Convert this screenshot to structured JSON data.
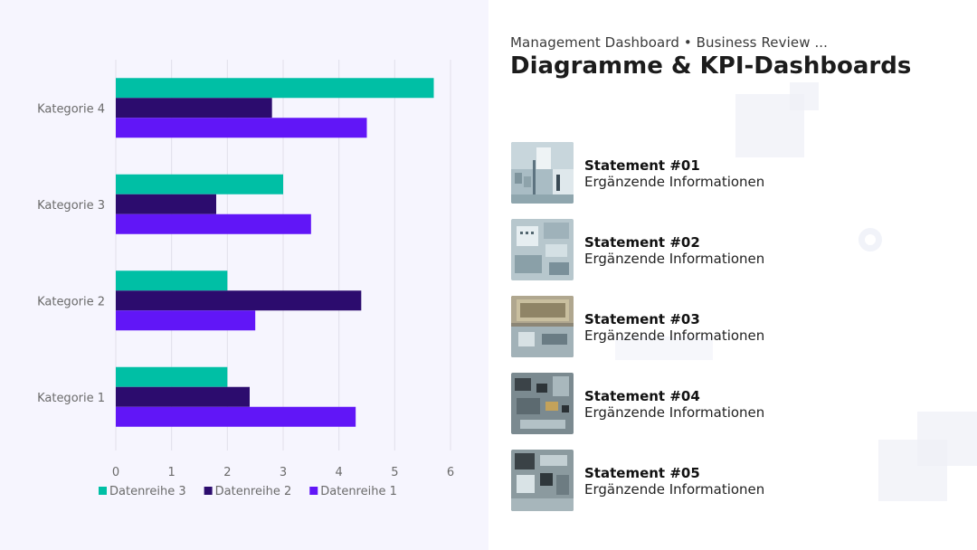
{
  "header": {
    "subtitle": "Management Dashboard • Business Review ...",
    "title": "Diagramme & KPI-Dashboards"
  },
  "statements": [
    {
      "title": "Statement #01",
      "subtitle": "Ergänzende Informationen",
      "image_icon": "circuit-board-image"
    },
    {
      "title": "Statement #02",
      "subtitle": "Ergänzende Informationen",
      "image_icon": "circuit-board-image"
    },
    {
      "title": "Statement #03",
      "subtitle": "Ergänzende Informationen",
      "image_icon": "processor-chip-image"
    },
    {
      "title": "Statement #04",
      "subtitle": "Ergänzende Informationen",
      "image_icon": "circuit-board-image"
    },
    {
      "title": "Statement #05",
      "subtitle": "Ergänzende Informationen",
      "image_icon": "circuit-board-image"
    }
  ],
  "chart_data": {
    "type": "bar",
    "orientation": "horizontal",
    "categories": [
      "Kategorie 1",
      "Kategorie 2",
      "Kategorie 3",
      "Kategorie 4"
    ],
    "series": [
      {
        "name": "Datenreihe 1",
        "color": "#6116f7",
        "values": [
          4.3,
          2.5,
          3.5,
          4.5
        ]
      },
      {
        "name": "Datenreihe 2",
        "color": "#2c0c6e",
        "values": [
          2.4,
          4.4,
          1.8,
          2.8
        ]
      },
      {
        "name": "Datenreihe 3",
        "color": "#00bfa5",
        "values": [
          2.0,
          2.0,
          3.0,
          5.7
        ]
      }
    ],
    "xticks": [
      "0",
      "1",
      "2",
      "3",
      "4",
      "5",
      "6"
    ],
    "xlim": [
      0,
      6
    ],
    "title": "",
    "xlabel": "",
    "ylabel": "",
    "grid": "vertical",
    "legend_position": "bottom",
    "legend_order": [
      "Datenreihe 3",
      "Datenreihe 2",
      "Datenreihe 1"
    ]
  },
  "colors": {
    "left_background": "#f6f5fe",
    "grid": "#e1dfea",
    "tick_text": "#6b6b6b"
  }
}
